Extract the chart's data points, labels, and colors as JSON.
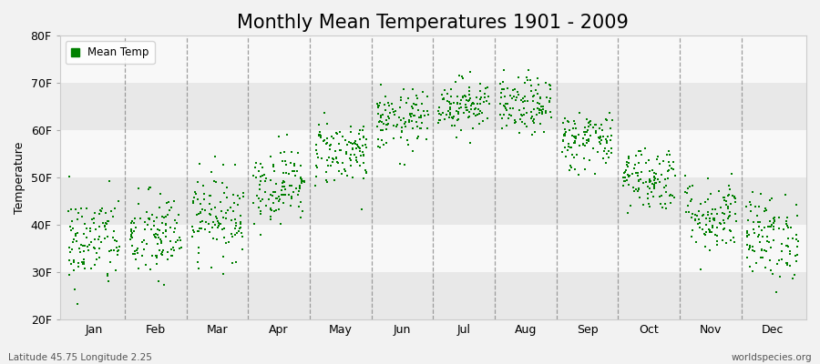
{
  "title": "Monthly Mean Temperatures 1901 - 2009",
  "ylabel": "Temperature",
  "ylim": [
    20,
    80
  ],
  "yticks": [
    20,
    30,
    40,
    50,
    60,
    70,
    80
  ],
  "ytick_labels": [
    "20F",
    "30F",
    "40F",
    "50F",
    "60F",
    "70F",
    "80F"
  ],
  "month_labels": [
    "Jan",
    "Feb",
    "Mar",
    "Apr",
    "May",
    "Jun",
    "Jul",
    "Aug",
    "Sep",
    "Oct",
    "Nov",
    "Dec"
  ],
  "dot_color": "#008000",
  "legend_label": "Mean Temp",
  "bottom_left": "Latitude 45.75 Longitude 2.25",
  "bottom_right": "worldspecies.org",
  "bg_color": "#f2f2f2",
  "band_light": "#f8f8f8",
  "band_dark": "#e8e8e8",
  "title_fontsize": 15,
  "n_years": 109,
  "mean_temps_F": [
    36.5,
    37.5,
    42.0,
    48.5,
    55.5,
    62.0,
    65.5,
    65.0,
    58.0,
    50.0,
    42.0,
    37.5
  ],
  "std_temps_F": [
    5.0,
    4.8,
    4.5,
    4.0,
    3.5,
    3.2,
    2.8,
    3.0,
    3.2,
    3.5,
    4.0,
    4.5
  ]
}
